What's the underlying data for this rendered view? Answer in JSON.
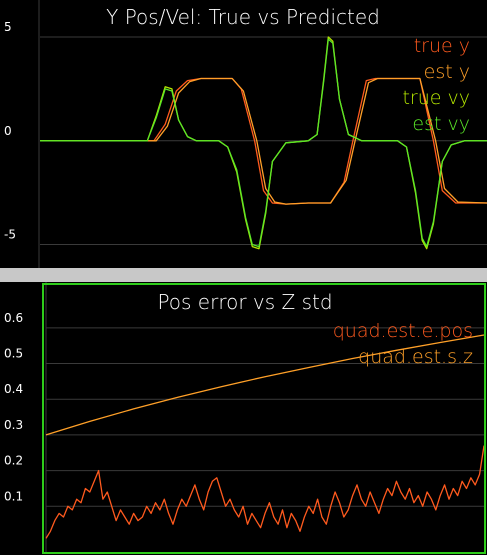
{
  "colors": {
    "background": "#000000",
    "grid": "#3a3a3a",
    "separator": "#c8c8c8",
    "text": "#ffffff",
    "true_y": "#ff5a1e",
    "est_y": "#ffa028",
    "true_vy": "#b4e600",
    "est_vy": "#5ae628",
    "selected_border": "#2ecc1a"
  },
  "plots": [
    {
      "title": "Y Pos/Vel: True vs Predicted",
      "legend": [
        "true y",
        "est y",
        "true vy",
        "est vy"
      ],
      "chart_data": {
        "type": "line",
        "title": "Y Pos/Vel: True vs Predicted",
        "xlabel": "",
        "ylabel": "",
        "ylim": [
          -5.6,
          5.0
        ],
        "yticks": [
          "5",
          "0",
          "-5"
        ],
        "grid": true,
        "legend_position": "top-right",
        "series": [
          {
            "name": "true y",
            "color": "#ff5a1e",
            "x": [
              0,
              20,
              25.5,
              28,
              30.5,
              33,
              36,
              40,
              43,
              45,
              48,
              50,
              52,
              55,
              60,
              65,
              68,
              70,
              73,
              75,
              80,
              85,
              88,
              90,
              93,
              100
            ],
            "y": [
              0,
              0,
              0,
              0.8,
              2.4,
              2.9,
              3.0,
              3.0,
              3.0,
              2.5,
              0.0,
              -2.4,
              -3.0,
              -3.05,
              -3.0,
              -3.0,
              -2.0,
              0.0,
              2.9,
              3.0,
              3.0,
              3.0,
              0.0,
              -2.4,
              -3.0,
              -3.0
            ]
          },
          {
            "name": "est y",
            "color": "#ffa028",
            "x": [
              0,
              20,
              26,
              28.5,
              31,
              33.5,
              36,
              40,
              43,
              45.5,
              48.5,
              50.5,
              52.5,
              55,
              60,
              65,
              68.5,
              70.5,
              73.5,
              75.5,
              80,
              85,
              88.5,
              90.5,
              93.5,
              100
            ],
            "y": [
              0,
              0,
              0,
              0.7,
              2.3,
              2.85,
              3.0,
              3.0,
              3.0,
              2.4,
              0.0,
              -2.3,
              -2.95,
              -3.05,
              -3.0,
              -3.0,
              -1.9,
              0.0,
              2.8,
              3.0,
              3.0,
              3.0,
              0.0,
              -2.3,
              -2.95,
              -3.0
            ]
          },
          {
            "name": "true vy",
            "color": "#b4e600",
            "x": [
              0,
              20,
              24,
              26,
              28,
              29.5,
              31,
              33,
              35,
              40,
              42,
              44,
              46,
              47.5,
              49,
              50.5,
              52,
              55,
              60,
              62,
              63.5,
              64.5,
              65.5,
              67,
              69,
              72,
              75,
              80,
              82,
              84,
              85.5,
              86.5,
              88,
              90,
              92,
              95,
              100
            ],
            "y": [
              0,
              0,
              0,
              1.2,
              2.6,
              2.5,
              1.0,
              0.2,
              0,
              0,
              -0.3,
              -1.5,
              -3.8,
              -5.1,
              -5.2,
              -3.5,
              -1.0,
              -0.1,
              0,
              0.3,
              3.0,
              5.0,
              4.8,
              2.0,
              0.3,
              0,
              0,
              0,
              -0.3,
              -2.5,
              -4.8,
              -5.2,
              -4.0,
              -1.0,
              -0.2,
              0,
              0
            ]
          },
          {
            "name": "est vy",
            "color": "#5ae628",
            "x": [
              0,
              20,
              24,
              26,
              28,
              29.5,
              31,
              33,
              35,
              40,
              42,
              44,
              46,
              47.5,
              49,
              50.5,
              52,
              55,
              60,
              62,
              63.5,
              64.5,
              65.5,
              67,
              69,
              72,
              75,
              80,
              82,
              84,
              85.5,
              86.5,
              88,
              90,
              92,
              95,
              100
            ],
            "y": [
              0,
              0,
              0,
              1.1,
              2.5,
              2.4,
              1.0,
              0.2,
              0,
              0,
              -0.3,
              -1.4,
              -3.7,
              -5.0,
              -5.1,
              -3.4,
              -1.0,
              -0.1,
              0,
              0.3,
              2.9,
              4.9,
              4.7,
              2.0,
              0.3,
              0,
              0,
              0,
              -0.3,
              -2.4,
              -4.7,
              -5.1,
              -3.9,
              -1.0,
              -0.2,
              0,
              0
            ]
          }
        ]
      }
    },
    {
      "title": "Pos error vs Z std",
      "legend": [
        "quad.est.e.pos",
        "quad.est.s.z"
      ],
      "chart_data": {
        "type": "line",
        "title": "Pos error vs Z std",
        "xlabel": "",
        "ylabel": "",
        "ylim": [
          0,
          0.65
        ],
        "yticks": [
          "0.6",
          "0.5",
          "0.4",
          "0.3",
          "0.2",
          "0.1"
        ],
        "grid": true,
        "legend_position": "top-right",
        "series": [
          {
            "name": "quad.est.e.pos",
            "color": "#ff5a1e",
            "x": [
              0,
              1,
              2,
              3,
              4,
              5,
              6,
              7,
              8,
              9,
              10,
              11,
              12,
              13,
              14,
              15,
              16,
              17,
              18,
              19,
              20,
              21,
              22,
              23,
              24,
              25,
              26,
              27,
              28,
              29,
              30,
              31,
              32,
              33,
              34,
              35,
              36,
              37,
              38,
              39,
              40,
              41,
              42,
              43,
              44,
              45,
              46,
              47,
              48,
              49,
              50,
              51,
              52,
              53,
              54,
              55,
              56,
              57,
              58,
              59,
              60,
              61,
              62,
              63,
              64,
              65,
              66,
              67,
              68,
              69,
              70,
              71,
              72,
              73,
              74,
              75,
              76,
              77,
              78,
              79,
              80,
              81,
              82,
              83,
              84,
              85,
              86,
              87,
              88,
              89,
              90,
              91,
              92,
              93,
              94,
              95,
              96,
              97,
              98,
              99,
              100
            ],
            "y": [
              0.01,
              0.03,
              0.06,
              0.08,
              0.07,
              0.1,
              0.09,
              0.12,
              0.11,
              0.15,
              0.14,
              0.17,
              0.2,
              0.12,
              0.14,
              0.1,
              0.06,
              0.09,
              0.07,
              0.05,
              0.08,
              0.06,
              0.07,
              0.1,
              0.08,
              0.11,
              0.09,
              0.12,
              0.08,
              0.05,
              0.09,
              0.12,
              0.1,
              0.13,
              0.16,
              0.12,
              0.09,
              0.14,
              0.17,
              0.18,
              0.14,
              0.1,
              0.12,
              0.09,
              0.07,
              0.1,
              0.05,
              0.08,
              0.06,
              0.04,
              0.08,
              0.11,
              0.07,
              0.05,
              0.09,
              0.04,
              0.08,
              0.06,
              0.03,
              0.07,
              0.1,
              0.08,
              0.12,
              0.07,
              0.05,
              0.1,
              0.14,
              0.11,
              0.07,
              0.09,
              0.13,
              0.16,
              0.12,
              0.1,
              0.14,
              0.11,
              0.08,
              0.12,
              0.15,
              0.13,
              0.17,
              0.14,
              0.12,
              0.15,
              0.11,
              0.13,
              0.1,
              0.14,
              0.12,
              0.09,
              0.13,
              0.16,
              0.12,
              0.15,
              0.13,
              0.17,
              0.15,
              0.18,
              0.16,
              0.19,
              0.27
            ]
          },
          {
            "name": "quad.est.s.z",
            "color": "#ffa028",
            "x": [
              0,
              10,
              20,
              30,
              40,
              50,
              60,
              70,
              80,
              90,
              100
            ],
            "y": [
              0.3,
              0.338,
              0.373,
              0.405,
              0.435,
              0.463,
              0.489,
              0.514,
              0.537,
              0.559,
              0.58
            ]
          }
        ]
      }
    }
  ]
}
